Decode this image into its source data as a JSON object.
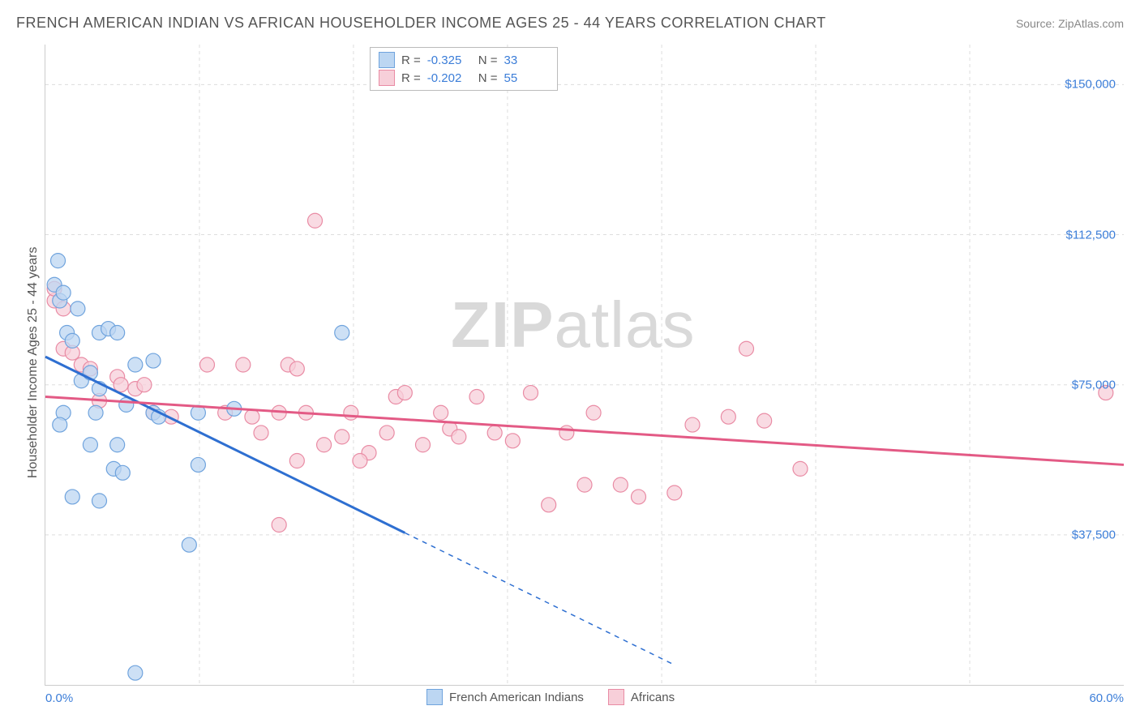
{
  "title": "FRENCH AMERICAN INDIAN VS AFRICAN HOUSEHOLDER INCOME AGES 25 - 44 YEARS CORRELATION CHART",
  "source": "Source: ZipAtlas.com",
  "watermark_a": "ZIP",
  "watermark_b": "atlas",
  "y_axis_title": "Householder Income Ages 25 - 44 years",
  "chart": {
    "type": "scatter",
    "xlim": [
      0,
      60
    ],
    "ylim": [
      0,
      160000
    ],
    "x_ticks": [
      0,
      60
    ],
    "x_tick_labels": [
      "0.0%",
      "60.0%"
    ],
    "x_minor_ticks": [
      8.57,
      17.14,
      25.71,
      34.29,
      42.86,
      51.43
    ],
    "y_ticks": [
      37500,
      75000,
      112500,
      150000
    ],
    "y_tick_labels": [
      "$37,500",
      "$75,000",
      "$112,500",
      "$150,000"
    ],
    "background_color": "#ffffff",
    "grid_color": "#dddddd",
    "axis_color": "#cccccc",
    "label_color": "#3b7dd8",
    "title_color": "#555555",
    "marker_radius": 9,
    "marker_stroke_width": 1.2,
    "trend_line_width": 3,
    "series": [
      {
        "name": "French American Indians",
        "fill": "#bcd6f2",
        "stroke": "#6fa3dd",
        "line_color": "#2e6fd1",
        "R": "-0.325",
        "N": "33",
        "trend": {
          "x1": 0,
          "y1": 82000,
          "x2_solid": 20,
          "y2_solid": 38000,
          "x2_dash": 35,
          "y2_dash": 5000
        },
        "points": [
          [
            0.5,
            100000
          ],
          [
            0.7,
            106000
          ],
          [
            0.8,
            96000
          ],
          [
            1.0,
            98000
          ],
          [
            1.8,
            94000
          ],
          [
            1.2,
            88000
          ],
          [
            1.5,
            86000
          ],
          [
            3.0,
            88000
          ],
          [
            3.5,
            89000
          ],
          [
            2.0,
            76000
          ],
          [
            2.5,
            78000
          ],
          [
            3.0,
            74000
          ],
          [
            4.0,
            88000
          ],
          [
            5.0,
            80000
          ],
          [
            6.0,
            81000
          ],
          [
            4.5,
            70000
          ],
          [
            2.8,
            68000
          ],
          [
            1.0,
            68000
          ],
          [
            0.8,
            65000
          ],
          [
            6.0,
            68000
          ],
          [
            6.3,
            67000
          ],
          [
            8.5,
            68000
          ],
          [
            10.5,
            69000
          ],
          [
            16.5,
            88000
          ],
          [
            8.5,
            55000
          ],
          [
            3.8,
            54000
          ],
          [
            4.3,
            53000
          ],
          [
            3.0,
            46000
          ],
          [
            1.5,
            47000
          ],
          [
            5.0,
            3000
          ],
          [
            8.0,
            35000
          ],
          [
            2.5,
            60000
          ],
          [
            4.0,
            60000
          ]
        ]
      },
      {
        "name": "Africans",
        "fill": "#f7cfd9",
        "stroke": "#e98ba4",
        "line_color": "#e35a85",
        "R": "-0.202",
        "N": "55",
        "trend": {
          "x1": 0,
          "y1": 72000,
          "x2_solid": 60,
          "y2_solid": 55000,
          "x2_dash": 60,
          "y2_dash": 55000
        },
        "points": [
          [
            0.5,
            96000
          ],
          [
            0.5,
            99000
          ],
          [
            1.0,
            94000
          ],
          [
            1.0,
            84000
          ],
          [
            1.5,
            83000
          ],
          [
            2.0,
            80000
          ],
          [
            2.5,
            79000
          ],
          [
            4.0,
            77000
          ],
          [
            4.2,
            75000
          ],
          [
            5.0,
            74000
          ],
          [
            5.5,
            75000
          ],
          [
            3.0,
            71000
          ],
          [
            6.0,
            68000
          ],
          [
            7.0,
            67000
          ],
          [
            9.0,
            80000
          ],
          [
            11.0,
            80000
          ],
          [
            13.5,
            80000
          ],
          [
            10.0,
            68000
          ],
          [
            11.5,
            67000
          ],
          [
            12.0,
            63000
          ],
          [
            13.0,
            68000
          ],
          [
            13.0,
            40000
          ],
          [
            14.0,
            79000
          ],
          [
            15.0,
            116000
          ],
          [
            14.5,
            68000
          ],
          [
            15.5,
            60000
          ],
          [
            16.5,
            62000
          ],
          [
            17.0,
            68000
          ],
          [
            18.0,
            58000
          ],
          [
            19.0,
            63000
          ],
          [
            19.5,
            72000
          ],
          [
            20.0,
            73000
          ],
          [
            21.0,
            60000
          ],
          [
            22.0,
            68000
          ],
          [
            22.5,
            64000
          ],
          [
            23.0,
            62000
          ],
          [
            24.0,
            72000
          ],
          [
            25.0,
            63000
          ],
          [
            26.0,
            61000
          ],
          [
            27.0,
            73000
          ],
          [
            28.0,
            45000
          ],
          [
            29.0,
            63000
          ],
          [
            30.0,
            50000
          ],
          [
            30.5,
            68000
          ],
          [
            32.0,
            50000
          ],
          [
            33.0,
            47000
          ],
          [
            35.0,
            48000
          ],
          [
            36.0,
            65000
          ],
          [
            38.0,
            67000
          ],
          [
            39.0,
            84000
          ],
          [
            40.0,
            66000
          ],
          [
            42.0,
            54000
          ],
          [
            59.0,
            73000
          ],
          [
            14.0,
            56000
          ],
          [
            17.5,
            56000
          ]
        ]
      }
    ]
  },
  "legend_bottom": [
    {
      "label": "French American Indians",
      "fill": "#bcd6f2",
      "stroke": "#6fa3dd"
    },
    {
      "label": "Africans",
      "fill": "#f7cfd9",
      "stroke": "#e98ba4"
    }
  ]
}
